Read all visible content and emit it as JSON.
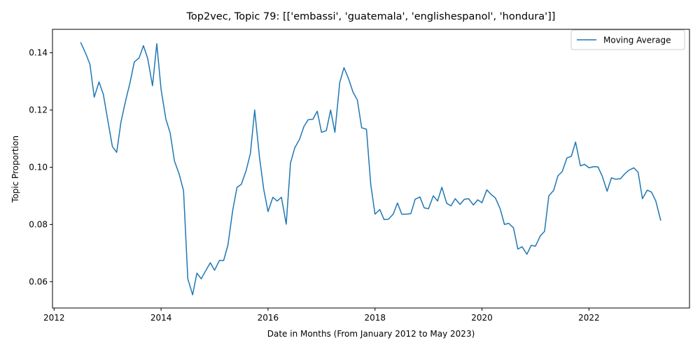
{
  "chart_data": {
    "type": "line",
    "title": "Top2vec, Topic 79: [['embassi', 'guatemala', 'englishespanol', 'hondura']]",
    "xlabel": "Date in Months (From January 2012 to May 2023)",
    "ylabel": "Topic Proportion",
    "xlim": [
      2011.97,
      2023.88
    ],
    "ylim": [
      0.0508,
      0.1482
    ],
    "x_ticks": [
      2012,
      2014,
      2016,
      2018,
      2020,
      2022
    ],
    "x_tick_labels": [
      "2012",
      "2014",
      "2016",
      "2018",
      "2020",
      "2022"
    ],
    "y_ticks": [
      0.06,
      0.08,
      0.1,
      0.12,
      0.14
    ],
    "y_tick_labels": [
      "0.06",
      "0.08",
      "0.10",
      "0.12",
      "0.14"
    ],
    "grid": false,
    "legend_position": "top-right",
    "series": [
      {
        "name": "Moving Average",
        "color": "#1f77b4",
        "points": [
          [
            2012.5,
            0.1435
          ],
          [
            2012.59,
            0.1398
          ],
          [
            2012.67,
            0.136
          ],
          [
            2012.75,
            0.1245
          ],
          [
            2012.84,
            0.1298
          ],
          [
            2012.92,
            0.1255
          ],
          [
            2013.0,
            0.1168
          ],
          [
            2013.09,
            0.1072
          ],
          [
            2013.17,
            0.1052
          ],
          [
            2013.25,
            0.1158
          ],
          [
            2013.34,
            0.1235
          ],
          [
            2013.42,
            0.1296
          ],
          [
            2013.5,
            0.1368
          ],
          [
            2013.59,
            0.1382
          ],
          [
            2013.67,
            0.1425
          ],
          [
            2013.75,
            0.138
          ],
          [
            2013.84,
            0.1285
          ],
          [
            2013.92,
            0.1432
          ],
          [
            2014.0,
            0.1272
          ],
          [
            2014.09,
            0.1168
          ],
          [
            2014.17,
            0.112
          ],
          [
            2014.25,
            0.1022
          ],
          [
            2014.34,
            0.0975
          ],
          [
            2014.42,
            0.0918
          ],
          [
            2014.5,
            0.061
          ],
          [
            2014.59,
            0.0554
          ],
          [
            2014.67,
            0.063
          ],
          [
            2014.75,
            0.061
          ],
          [
            2014.84,
            0.064
          ],
          [
            2014.92,
            0.0666
          ],
          [
            2015.0,
            0.064
          ],
          [
            2015.09,
            0.0674
          ],
          [
            2015.17,
            0.0674
          ],
          [
            2015.25,
            0.0728
          ],
          [
            2015.34,
            0.085
          ],
          [
            2015.42,
            0.093
          ],
          [
            2015.5,
            0.094
          ],
          [
            2015.59,
            0.0988
          ],
          [
            2015.67,
            0.1048
          ],
          [
            2015.75,
            0.12
          ],
          [
            2015.84,
            0.1035
          ],
          [
            2015.92,
            0.0922
          ],
          [
            2016.0,
            0.0845
          ],
          [
            2016.09,
            0.0895
          ],
          [
            2016.17,
            0.0882
          ],
          [
            2016.25,
            0.0895
          ],
          [
            2016.34,
            0.0801
          ],
          [
            2016.42,
            0.1015
          ],
          [
            2016.5,
            0.1068
          ],
          [
            2016.59,
            0.1098
          ],
          [
            2016.67,
            0.1142
          ],
          [
            2016.75,
            0.1166
          ],
          [
            2016.84,
            0.1168
          ],
          [
            2016.92,
            0.1196
          ],
          [
            2017.0,
            0.1122
          ],
          [
            2017.09,
            0.1128
          ],
          [
            2017.17,
            0.12
          ],
          [
            2017.25,
            0.1122
          ],
          [
            2017.34,
            0.1295
          ],
          [
            2017.42,
            0.1348
          ],
          [
            2017.5,
            0.1312
          ],
          [
            2017.59,
            0.1262
          ],
          [
            2017.67,
            0.1235
          ],
          [
            2017.75,
            0.1138
          ],
          [
            2017.84,
            0.1133
          ],
          [
            2017.92,
            0.094
          ],
          [
            2018.0,
            0.0836
          ],
          [
            2018.09,
            0.0852
          ],
          [
            2018.17,
            0.0817
          ],
          [
            2018.25,
            0.0818
          ],
          [
            2018.34,
            0.0836
          ],
          [
            2018.42,
            0.0875
          ],
          [
            2018.5,
            0.0836
          ],
          [
            2018.59,
            0.0836
          ],
          [
            2018.67,
            0.0838
          ],
          [
            2018.75,
            0.0888
          ],
          [
            2018.84,
            0.0896
          ],
          [
            2018.92,
            0.0858
          ],
          [
            2019.0,
            0.0855
          ],
          [
            2019.09,
            0.09
          ],
          [
            2019.17,
            0.0882
          ],
          [
            2019.25,
            0.093
          ],
          [
            2019.34,
            0.0874
          ],
          [
            2019.42,
            0.0865
          ],
          [
            2019.5,
            0.089
          ],
          [
            2019.59,
            0.087
          ],
          [
            2019.67,
            0.0888
          ],
          [
            2019.75,
            0.089
          ],
          [
            2019.84,
            0.0868
          ],
          [
            2019.92,
            0.0886
          ],
          [
            2020.0,
            0.0876
          ],
          [
            2020.09,
            0.0921
          ],
          [
            2020.17,
            0.0905
          ],
          [
            2020.25,
            0.0893
          ],
          [
            2020.34,
            0.0855
          ],
          [
            2020.42,
            0.08
          ],
          [
            2020.5,
            0.0804
          ],
          [
            2020.59,
            0.0788
          ],
          [
            2020.67,
            0.0714
          ],
          [
            2020.75,
            0.0722
          ],
          [
            2020.84,
            0.0696
          ],
          [
            2020.92,
            0.0727
          ],
          [
            2021.0,
            0.0724
          ],
          [
            2021.09,
            0.076
          ],
          [
            2021.17,
            0.0776
          ],
          [
            2021.25,
            0.09
          ],
          [
            2021.34,
            0.0919
          ],
          [
            2021.42,
            0.097
          ],
          [
            2021.5,
            0.0985
          ],
          [
            2021.59,
            0.1033
          ],
          [
            2021.67,
            0.1038
          ],
          [
            2021.75,
            0.1088
          ],
          [
            2021.84,
            0.1005
          ],
          [
            2021.92,
            0.101
          ],
          [
            2022.0,
            0.0998
          ],
          [
            2022.09,
            0.1002
          ],
          [
            2022.17,
            0.1001
          ],
          [
            2022.25,
            0.0968
          ],
          [
            2022.34,
            0.0916
          ],
          [
            2022.42,
            0.0963
          ],
          [
            2022.5,
            0.0958
          ],
          [
            2022.59,
            0.096
          ],
          [
            2022.67,
            0.0977
          ],
          [
            2022.75,
            0.099
          ],
          [
            2022.84,
            0.0998
          ],
          [
            2022.92,
            0.0982
          ],
          [
            2023.0,
            0.089
          ],
          [
            2023.09,
            0.092
          ],
          [
            2023.17,
            0.0913
          ],
          [
            2023.25,
            0.0882
          ],
          [
            2023.34,
            0.0815
          ]
        ]
      }
    ]
  }
}
